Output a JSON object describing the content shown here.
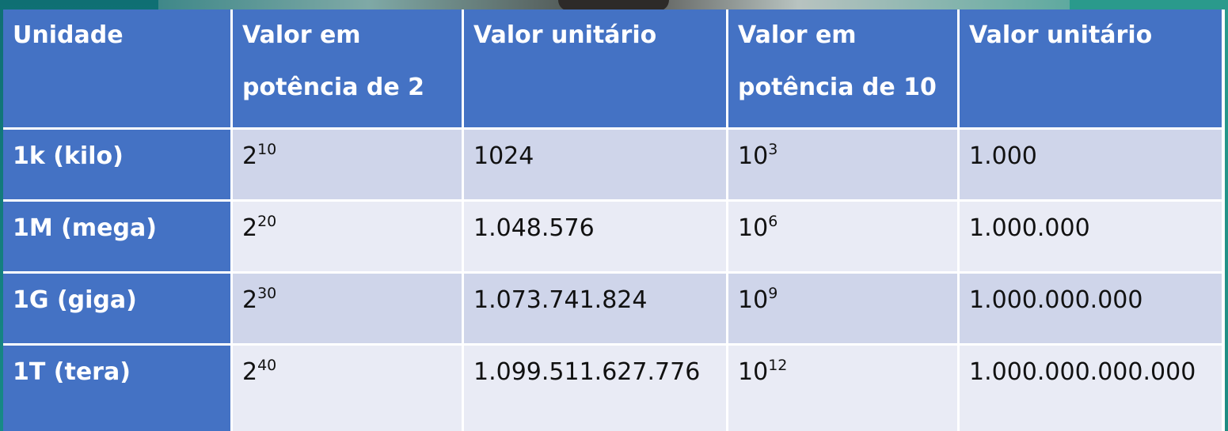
{
  "colors": {
    "header_bg": "#4472c4",
    "header_text": "#ffffff",
    "row_odd_bg": "#cfd5ea",
    "row_even_bg": "#e9ebf5"
  },
  "table": {
    "headers": [
      {
        "line1": "Unidade",
        "line2": ""
      },
      {
        "line1": "Valor em",
        "line2": "potência de 2"
      },
      {
        "line1": "Valor unitário",
        "line2": ""
      },
      {
        "line1": "Valor em",
        "line2": "potência de 10"
      },
      {
        "line1": "Valor unitário",
        "line2": ""
      }
    ],
    "rows": [
      {
        "unit": "1k (kilo)",
        "pow2_base": "2",
        "pow2_exp": "10",
        "value2": "1024",
        "pow10_base": "10",
        "pow10_exp": "3",
        "value10": "1.000"
      },
      {
        "unit": "1M (mega)",
        "pow2_base": "2",
        "pow2_exp": "20",
        "value2": "1.048.576",
        "pow10_base": "10",
        "pow10_exp": "6",
        "value10": "1.000.000"
      },
      {
        "unit": "1G (giga)",
        "pow2_base": "2",
        "pow2_exp": "30",
        "value2": "1.073.741.824",
        "pow10_base": "10",
        "pow10_exp": "9",
        "value10": "1.000.000.000"
      },
      {
        "unit": "1T (tera)",
        "pow2_base": "2",
        "pow2_exp": "40",
        "value2": "1.099.511.627.776",
        "pow10_base": "10",
        "pow10_exp": "12",
        "value10": "1.000.000.000.000"
      }
    ]
  }
}
